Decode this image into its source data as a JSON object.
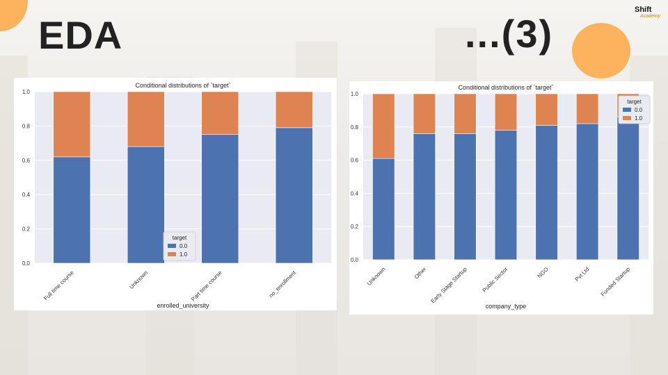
{
  "slide": {
    "title_left": "EDA",
    "title_right": "...(3)",
    "logo_main": "Shift",
    "logo_sub": "Academy",
    "accent_color": "#fdb35d"
  },
  "chart_data": [
    {
      "type": "bar",
      "stacked": true,
      "title": "Conditional distributions of `target`",
      "xlabel": "enrolled_university",
      "ylabel": "",
      "categories": [
        "Full time course",
        "Unknown",
        "Part time course",
        "no_enrollment"
      ],
      "series": [
        {
          "name": "0.0",
          "color": "#4c72b0",
          "values": [
            0.62,
            0.68,
            0.75,
            0.79
          ]
        },
        {
          "name": "1.0",
          "color": "#dd8452",
          "values": [
            0.38,
            0.32,
            0.25,
            0.21
          ]
        }
      ],
      "ylim": [
        0,
        1.0
      ],
      "yticks": [
        "0.0",
        "0.2",
        "0.4",
        "0.6",
        "0.8",
        "1.0"
      ],
      "legend_title": "target",
      "legend_position": "bottom-center",
      "grid": true
    },
    {
      "type": "bar",
      "stacked": true,
      "title": "Conditional distributions of `target`",
      "xlabel": "company_type",
      "ylabel": "",
      "categories": [
        "Unknown",
        "Other",
        "Early Stage Startup",
        "Public Sector",
        "NGO",
        "Pvt Ltd",
        "Funded Startup"
      ],
      "series": [
        {
          "name": "0.0",
          "color": "#4c72b0",
          "values": [
            0.61,
            0.76,
            0.76,
            0.78,
            0.81,
            0.82,
            0.86
          ]
        },
        {
          "name": "1.0",
          "color": "#dd8452",
          "values": [
            0.39,
            0.24,
            0.24,
            0.22,
            0.19,
            0.18,
            0.14
          ]
        }
      ],
      "ylim": [
        0,
        1.0
      ],
      "yticks": [
        "0.0",
        "0.2",
        "0.4",
        "0.6",
        "0.8",
        "1.0"
      ],
      "legend_title": "target",
      "legend_position": "top-right",
      "grid": true
    }
  ]
}
